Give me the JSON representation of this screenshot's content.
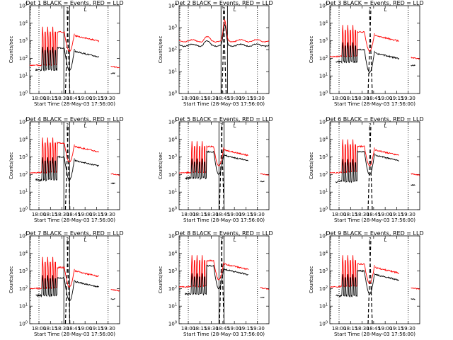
{
  "figure": {
    "title_template": "Det {n}  BLACK = Events, RED = LLD",
    "xlabel": "Start Time (28-May-03 17:56:00)",
    "ylabel": "Counts/sec"
  },
  "chart_data": [
    {
      "type": "line",
      "det": "1",
      "title": "Det 1  BLACK = Events, RED = LLD",
      "xlabel": "Start Time (28-May-03 17:56:00)",
      "ylabel": "Counts/sec",
      "xlim": [
        -4,
        35
      ],
      "xticks": [
        0,
        5,
        10,
        15,
        20,
        25,
        30
      ],
      "xticklabels": [
        "18:00",
        "18:15",
        "18:30",
        "18:45",
        "19:00",
        "19:15",
        "19:30"
      ],
      "ylim": [
        0,
        5
      ],
      "ytick_exponents": [
        0,
        1,
        2,
        3,
        4,
        5
      ],
      "yscale": "log",
      "fill": "flare",
      "red_base": 1.6,
      "black_base": 1.25,
      "red_plateau": 3.5,
      "black_plateau": 2.6,
      "spike_top": 3.8,
      "lines_solid": [
        0,
        10.8,
        13.3,
        30
      ],
      "lines_dashed": [
        12.1,
        12.8
      ],
      "legend_marks": [
        "?",
        "L"
      ],
      "series": [
        {
          "name": "Events",
          "color": "#000000"
        },
        {
          "name": "LLD",
          "color": "#ff0000"
        }
      ]
    },
    {
      "type": "line",
      "det": "2",
      "title": "Det 2  BLACK = Events, RED = LLD",
      "xlabel": "Start Time (28-May-03 17:56:00)",
      "ylabel": "Counts/sec",
      "xlim": [
        -4,
        35
      ],
      "xticks": [
        0,
        5,
        10,
        15,
        20,
        25,
        30
      ],
      "xticklabels": [
        "18:00",
        "18:15",
        "18:30",
        "18:45",
        "19:00",
        "19:15",
        "19:30"
      ],
      "ylim": [
        0,
        4
      ],
      "ytick_exponents": [
        0,
        1,
        2,
        3,
        4
      ],
      "yscale": "log",
      "fill": "smooth",
      "red_base": 2.4,
      "black_base": 2.2,
      "red_plateau": 2.45,
      "black_plateau": 2.25,
      "spike_top": 3.35,
      "lines_solid": [
        0,
        14.2,
        17,
        30
      ],
      "lines_dashed": [
        15.2,
        15.8
      ],
      "legend_marks": [
        "?",
        "L"
      ],
      "series": [
        {
          "name": "Events",
          "color": "#000000"
        },
        {
          "name": "LLD",
          "color": "#ff0000"
        }
      ]
    },
    {
      "type": "line",
      "det": "3",
      "title": "Det 3  BLACK = Events, RED = LLD",
      "xlabel": "Start Time (28-May-03 17:56:00)",
      "ylabel": "Counts/sec",
      "xlim": [
        -4,
        35
      ],
      "xticks": [
        0,
        5,
        10,
        15,
        20,
        25,
        30
      ],
      "xticklabels": [
        "18:00",
        "18:15",
        "18:30",
        "18:45",
        "19:00",
        "19:15",
        "19:30"
      ],
      "ylim": [
        0,
        5
      ],
      "ytick_exponents": [
        0,
        1,
        2,
        3,
        4,
        5
      ],
      "yscale": "log",
      "fill": "flare",
      "red_base": 2.1,
      "black_base": 1.7,
      "red_plateau": 3.5,
      "black_plateau": 2.5,
      "spike_top": 3.9,
      "lines_solid": [
        0,
        30
      ],
      "lines_dashed": [
        13.2,
        13.8
      ],
      "legend_marks": [
        "?",
        "L"
      ],
      "series": [
        {
          "name": "Events",
          "color": "#000000"
        },
        {
          "name": "LLD",
          "color": "#ff0000"
        }
      ]
    },
    {
      "type": "line",
      "det": "4",
      "title": "Det 4  BLACK = Events, RED = LLD",
      "xlabel": "Start Time (28-May-03 17:56:00)",
      "ylabel": "Counts/sec",
      "xlim": [
        -4,
        35
      ],
      "xticks": [
        0,
        5,
        10,
        15,
        20,
        25,
        30
      ],
      "xticklabels": [
        "18:00",
        "18:15",
        "18:30",
        "18:45",
        "19:00",
        "19:15",
        "19:30"
      ],
      "ylim": [
        0,
        5
      ],
      "ytick_exponents": [
        0,
        1,
        2,
        3,
        4,
        5
      ],
      "yscale": "log",
      "fill": "flare",
      "red_base": 2.1,
      "black_base": 1.6,
      "red_plateau": 3.8,
      "black_plateau": 3.0,
      "spike_top": 4.1,
      "lines_solid": [
        0,
        10.8,
        13.3,
        30
      ],
      "lines_dashed": [
        12.1,
        12.8
      ],
      "legend_marks": [
        "?",
        "L"
      ],
      "series": [
        {
          "name": "Events",
          "color": "#000000"
        },
        {
          "name": "LLD",
          "color": "#ff0000"
        }
      ]
    },
    {
      "type": "line",
      "det": "5",
      "title": "Det 5  BLACK = Events, RED = LLD",
      "xlabel": "Start Time (28-May-03 17:56:00)",
      "ylabel": "Counts/sec",
      "xlim": [
        -4,
        35
      ],
      "xticks": [
        0,
        5,
        10,
        15,
        20,
        25,
        30
      ],
      "xticklabels": [
        "18:00",
        "18:15",
        "18:30",
        "18:45",
        "19:00",
        "19:15",
        "19:30"
      ],
      "ylim": [
        0,
        5
      ],
      "ytick_exponents": [
        0,
        1,
        2,
        3,
        4,
        5
      ],
      "yscale": "log",
      "fill": "flare",
      "red_base": 2.1,
      "black_base": 1.7,
      "red_plateau": 3.6,
      "black_plateau": 3.3,
      "spike_top": 3.9,
      "lines_solid": [
        0,
        13.3,
        15.5,
        30
      ],
      "lines_dashed": [
        14.1,
        14.9
      ],
      "legend_marks": [
        "?",
        "L"
      ],
      "series": [
        {
          "name": "Events",
          "color": "#000000"
        },
        {
          "name": "LLD",
          "color": "#ff0000"
        }
      ]
    },
    {
      "type": "line",
      "det": "6",
      "title": "Det 6  BLACK = Events, RED = LLD",
      "xlabel": "Start Time (28-May-03 17:56:00)",
      "ylabel": "Counts/sec",
      "xlim": [
        -4,
        35
      ],
      "xticks": [
        0,
        5,
        10,
        15,
        20,
        25,
        30
      ],
      "xticklabels": [
        "18:00",
        "18:15",
        "18:30",
        "18:45",
        "19:00",
        "19:15",
        "19:30"
      ],
      "ylim": [
        0,
        5
      ],
      "ytick_exponents": [
        0,
        1,
        2,
        3,
        4,
        5
      ],
      "yscale": "log",
      "fill": "flare",
      "red_base": 2.1,
      "black_base": 1.5,
      "red_plateau": 3.6,
      "black_plateau": 3.3,
      "spike_top": 4.0,
      "lines_solid": [
        0,
        30
      ],
      "lines_dashed": [
        13.2,
        13.8
      ],
      "legend_marks": [
        "?",
        "L"
      ],
      "series": [
        {
          "name": "Events",
          "color": "#000000"
        },
        {
          "name": "LLD",
          "color": "#ff0000"
        }
      ]
    },
    {
      "type": "line",
      "det": "7",
      "title": "Det 7  BLACK = Events, RED = LLD",
      "xlabel": "Start Time (28-May-03 17:56:00)",
      "ylabel": "Counts/sec",
      "xlim": [
        -4,
        35
      ],
      "xticks": [
        0,
        5,
        10,
        15,
        20,
        25,
        30
      ],
      "xticklabels": [
        "18:00",
        "18:15",
        "18:30",
        "18:45",
        "19:00",
        "19:15",
        "19:30"
      ],
      "ylim": [
        0,
        5
      ],
      "ytick_exponents": [
        0,
        1,
        2,
        3,
        4,
        5
      ],
      "yscale": "log",
      "fill": "flare",
      "red_base": 2.0,
      "black_base": 1.5,
      "red_plateau": 3.2,
      "black_plateau": 2.6,
      "spike_top": 3.8,
      "lines_solid": [
        0,
        10.8,
        13.3,
        30
      ],
      "lines_dashed": [
        12.1,
        12.8
      ],
      "legend_marks": [
        "?",
        "L"
      ],
      "series": [
        {
          "name": "Events",
          "color": "#000000"
        },
        {
          "name": "LLD",
          "color": "#ff0000"
        }
      ]
    },
    {
      "type": "line",
      "det": "8",
      "title": "Det 8  BLACK = Events, RED = LLD",
      "xlabel": "Start Time (28-May-03 17:56:00)",
      "ylabel": "Counts/sec",
      "xlim": [
        -4,
        35
      ],
      "xticks": [
        0,
        5,
        10,
        15,
        20,
        25,
        30
      ],
      "xticklabels": [
        "18:00",
        "18:15",
        "18:30",
        "18:45",
        "19:00",
        "19:15",
        "19:30"
      ],
      "ylim": [
        0,
        5
      ],
      "ytick_exponents": [
        0,
        1,
        2,
        3,
        4,
        5
      ],
      "yscale": "log",
      "fill": "flare",
      "red_base": 2.1,
      "black_base": 1.6,
      "red_plateau": 3.6,
      "black_plateau": 3.3,
      "spike_top": 3.9,
      "lines_solid": [
        0,
        13.3,
        15.5,
        30
      ],
      "lines_dashed": [
        14.1,
        14.9
      ],
      "legend_marks": [
        "?",
        "L"
      ],
      "series": [
        {
          "name": "Events",
          "color": "#000000"
        },
        {
          "name": "LLD",
          "color": "#ff0000"
        }
      ]
    },
    {
      "type": "line",
      "det": "9",
      "title": "Det 9  BLACK = Events, RED = LLD",
      "xlabel": "Start Time (28-May-03 17:56:00)",
      "ylabel": "Counts/sec",
      "xlim": [
        -4,
        35
      ],
      "xticks": [
        0,
        5,
        10,
        15,
        20,
        25,
        30
      ],
      "xticklabels": [
        "18:00",
        "18:15",
        "18:30",
        "18:45",
        "19:00",
        "19:15",
        "19:30"
      ],
      "ylim": [
        0,
        5
      ],
      "ytick_exponents": [
        0,
        1,
        2,
        3,
        4,
        5
      ],
      "yscale": "log",
      "fill": "flare",
      "red_base": 2.1,
      "black_base": 1.5,
      "red_plateau": 3.4,
      "black_plateau": 3.0,
      "spike_top": 3.9,
      "lines_solid": [
        0,
        30
      ],
      "lines_dashed": [
        13.2,
        13.8
      ],
      "legend_marks": [
        "?",
        "L"
      ],
      "series": [
        {
          "name": "Events",
          "color": "#000000"
        },
        {
          "name": "LLD",
          "color": "#ff0000"
        }
      ]
    }
  ]
}
